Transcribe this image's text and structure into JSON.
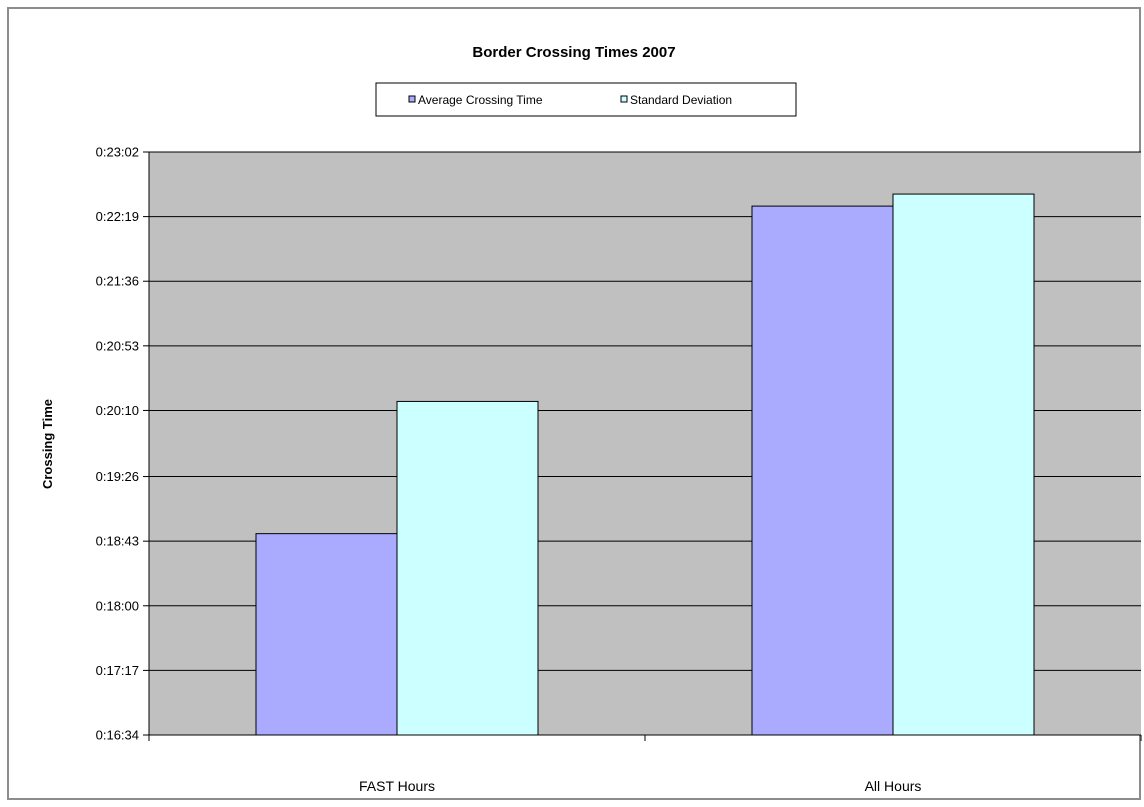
{
  "chart_data": {
    "type": "bar",
    "title": "Border Crossing Times 2007",
    "xlabel": "",
    "ylabel": "Crossing Time",
    "categories": [
      "FAST Hours",
      "All Hours"
    ],
    "series": [
      {
        "name": "Average Crossing Time",
        "values": [
          1128,
          1346
        ]
      },
      {
        "name": "Standard Deviation",
        "values": [
          1216,
          1354
        ]
      }
    ],
    "value_format": "h:mm:ss",
    "ylim": [
      994,
      1382
    ],
    "yticks": [
      "0:16:34",
      "0:17:17",
      "0:18:00",
      "0:18:43",
      "0:19:26",
      "0:20:10",
      "0:20:53",
      "0:21:36",
      "0:22:19",
      "0:23:02"
    ],
    "grid": true,
    "legend": "top-center",
    "colors": {
      "Average Crossing Time": "#aaaaff",
      "Standard Deviation": "#ccffff",
      "plot_background": "#c0c0c0",
      "gridline": "#000000"
    }
  }
}
